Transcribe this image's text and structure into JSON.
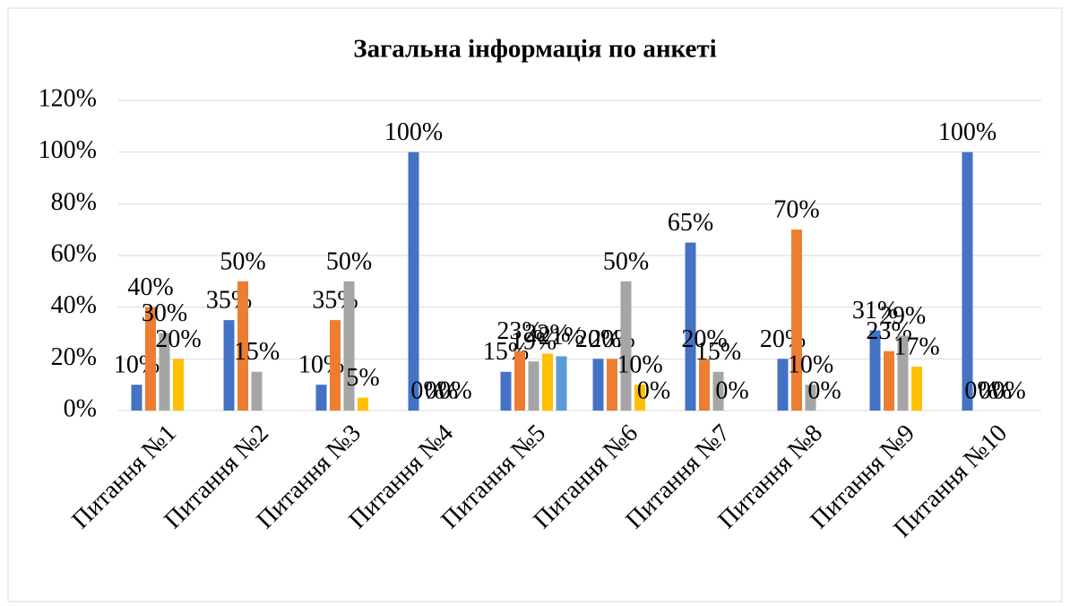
{
  "chart_data": {
    "type": "bar",
    "title": "Загальна інформація по анкеті",
    "categories": [
      "Питання №1",
      "Питання №2",
      "Питання №3",
      "Питання №4",
      "Питання №5",
      "Питання №6",
      "Питання №7",
      "Питання №8",
      "Питання №9",
      "Питання №10"
    ],
    "series": [
      {
        "color": "#4472c4",
        "values": [
          10,
          35,
          10,
          100,
          15,
          20,
          65,
          20,
          31,
          100
        ],
        "value_labels": [
          "10%",
          "35%",
          "10%",
          "100%",
          "15%",
          "20%",
          "65%",
          "20%",
          "31%",
          "100%"
        ]
      },
      {
        "color": "#ed7d31",
        "values": [
          40,
          50,
          35,
          0,
          23,
          20,
          20,
          70,
          23,
          0
        ],
        "value_labels": [
          "40%",
          "50%",
          "35%",
          "0%",
          "23%",
          "20%",
          "20%",
          "70%",
          "23%",
          "0%"
        ]
      },
      {
        "color": "#a5a5a5",
        "values": [
          30,
          15,
          50,
          0,
          19,
          50,
          15,
          10,
          29,
          0
        ],
        "value_labels": [
          "30%",
          "15%",
          "50%",
          "0%",
          "19%",
          "50%",
          "15%",
          "10%",
          "29%",
          "0%"
        ]
      },
      {
        "color": "#ffc000",
        "values": [
          20,
          null,
          5,
          0,
          22,
          10,
          0,
          0,
          17,
          0
        ],
        "value_labels": [
          "20%",
          null,
          "5%",
          "0%",
          "22%",
          "10%",
          "0%",
          "0%",
          "17%",
          "0%"
        ]
      },
      {
        "color": "#5b9bd5",
        "values": [
          null,
          null,
          null,
          null,
          21,
          0,
          null,
          null,
          null,
          null
        ],
        "value_labels": [
          null,
          null,
          null,
          null,
          "21%",
          "0%",
          null,
          null,
          null,
          null
        ]
      }
    ],
    "ylim": [
      0,
      120
    ],
    "yticks": [
      {
        "value": 0,
        "label": "0%"
      },
      {
        "value": 20,
        "label": "20%"
      },
      {
        "value": 40,
        "label": "40%"
      },
      {
        "value": 60,
        "label": "60%"
      },
      {
        "value": 80,
        "label": "80%"
      },
      {
        "value": 100,
        "label": "100%"
      },
      {
        "value": 120,
        "label": "120%"
      }
    ],
    "grid": true
  }
}
